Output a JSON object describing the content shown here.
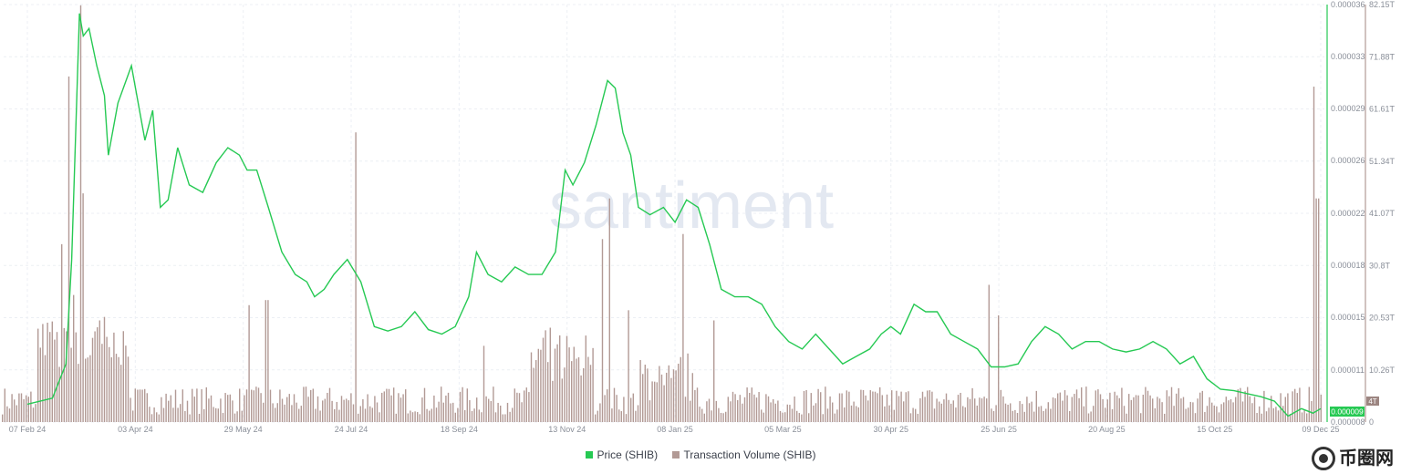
{
  "chart_data": {
    "type": "bar+line",
    "watermark": "santiment",
    "x_ticks": [
      "07 Feb 24",
      "03 Apr 24",
      "29 May 24",
      "24 Jul 24",
      "18 Sep 24",
      "13 Nov 24",
      "08 Jan 25",
      "05 Mar 25",
      "30 Apr 25",
      "25 Jun 25",
      "20 Aug 25",
      "15 Oct 25",
      "09 Dec 25"
    ],
    "price_axis": {
      "ticks": [
        "0.000036",
        "0.000033",
        "0.000029",
        "0.000026",
        "0.000022",
        "0.000018",
        "0.000015",
        "0.000011",
        "0.000009",
        "0.000008"
      ],
      "ylim": [
        8.1e-06,
        3.61e-05
      ]
    },
    "volume_axis": {
      "ticks": [
        "82.15T",
        "71.88T",
        "61.61T",
        "51.34T",
        "41.07T",
        "30.8T",
        "20.53T",
        "10.26T",
        "0"
      ],
      "ylim": [
        0,
        82.15
      ]
    },
    "current_price_label": "0.000009",
    "current_volume_label": "4T",
    "series": [
      {
        "name": "Price (SHIB)",
        "color": "#26c953",
        "points": [
          [
            "07 Feb 24",
            9.3e-06
          ],
          [
            "20 Feb 24",
            9.7e-06
          ],
          [
            "27 Feb 24",
            1.2e-05
          ],
          [
            "01 Mar 24",
            1.9e-05
          ],
          [
            "05 Mar 24",
            3.55e-05
          ],
          [
            "07 Mar 24",
            3.4e-05
          ],
          [
            "10 Mar 24",
            3.45e-05
          ],
          [
            "14 Mar 24",
            3.2e-05
          ],
          [
            "18 Mar 24",
            3e-05
          ],
          [
            "20 Mar 24",
            2.6e-05
          ],
          [
            "25 Mar 24",
            2.95e-05
          ],
          [
            "01 Apr 24",
            3.2e-05
          ],
          [
            "08 Apr 24",
            2.7e-05
          ],
          [
            "12 Apr 24",
            2.9e-05
          ],
          [
            "16 Apr 24",
            2.25e-05
          ],
          [
            "20 Apr 24",
            2.3e-05
          ],
          [
            "25 Apr 24",
            2.65e-05
          ],
          [
            "01 May 24",
            2.4e-05
          ],
          [
            "08 May 24",
            2.35e-05
          ],
          [
            "15 May 24",
            2.55e-05
          ],
          [
            "21 May 24",
            2.65e-05
          ],
          [
            "27 May 24",
            2.6e-05
          ],
          [
            "31 May 24",
            2.5e-05
          ],
          [
            "05 Jun 24",
            2.5e-05
          ],
          [
            "11 Jun 24",
            2.25e-05
          ],
          [
            "18 Jun 24",
            1.95e-05
          ],
          [
            "25 Jun 24",
            1.8e-05
          ],
          [
            "01 Jul 24",
            1.75e-05
          ],
          [
            "05 Jul 24",
            1.65e-05
          ],
          [
            "10 Jul 24",
            1.7e-05
          ],
          [
            "15 Jul 24",
            1.8e-05
          ],
          [
            "22 Jul 24",
            1.9e-05
          ],
          [
            "29 Jul 24",
            1.75e-05
          ],
          [
            "05 Aug 24",
            1.45e-05
          ],
          [
            "12 Aug 24",
            1.42e-05
          ],
          [
            "19 Aug 24",
            1.45e-05
          ],
          [
            "26 Aug 24",
            1.55e-05
          ],
          [
            "02 Sep 24",
            1.43e-05
          ],
          [
            "09 Sep 24",
            1.4e-05
          ],
          [
            "16 Sep 24",
            1.45e-05
          ],
          [
            "23 Sep 24",
            1.65e-05
          ],
          [
            "27 Sep 24",
            1.95e-05
          ],
          [
            "03 Oct 24",
            1.8e-05
          ],
          [
            "10 Oct 24",
            1.75e-05
          ],
          [
            "17 Oct 24",
            1.85e-05
          ],
          [
            "24 Oct 24",
            1.8e-05
          ],
          [
            "31 Oct 24",
            1.8e-05
          ],
          [
            "07 Nov 24",
            1.95e-05
          ],
          [
            "12 Nov 24",
            2.5e-05
          ],
          [
            "16 Nov 24",
            2.4e-05
          ],
          [
            "22 Nov 24",
            2.55e-05
          ],
          [
            "28 Nov 24",
            2.8e-05
          ],
          [
            "04 Dec 24",
            3.1e-05
          ],
          [
            "08 Dec 24",
            3.05e-05
          ],
          [
            "12 Dec 24",
            2.75e-05
          ],
          [
            "16 Dec 24",
            2.6e-05
          ],
          [
            "20 Dec 24",
            2.25e-05
          ],
          [
            "26 Dec 24",
            2.2e-05
          ],
          [
            "02 Jan 25",
            2.25e-05
          ],
          [
            "08 Jan 25",
            2.15e-05
          ],
          [
            "14 Jan 25",
            2.3e-05
          ],
          [
            "20 Jan 25",
            2.25e-05
          ],
          [
            "26 Jan 25",
            2e-05
          ],
          [
            "01 Feb 25",
            1.7e-05
          ],
          [
            "08 Feb 25",
            1.65e-05
          ],
          [
            "15 Feb 25",
            1.65e-05
          ],
          [
            "22 Feb 25",
            1.6e-05
          ],
          [
            "01 Mar 25",
            1.45e-05
          ],
          [
            "08 Mar 25",
            1.35e-05
          ],
          [
            "15 Mar 25",
            1.3e-05
          ],
          [
            "22 Mar 25",
            1.4e-05
          ],
          [
            "29 Mar 25",
            1.3e-05
          ],
          [
            "05 Apr 25",
            1.2e-05
          ],
          [
            "12 Apr 25",
            1.25e-05
          ],
          [
            "19 Apr 25",
            1.3e-05
          ],
          [
            "25 Apr 25",
            1.4e-05
          ],
          [
            "30 Apr 25",
            1.45e-05
          ],
          [
            "05 May 25",
            1.4e-05
          ],
          [
            "12 May 25",
            1.6e-05
          ],
          [
            "18 May 25",
            1.55e-05
          ],
          [
            "24 May 25",
            1.55e-05
          ],
          [
            "31 May 25",
            1.4e-05
          ],
          [
            "07 Jun 25",
            1.35e-05
          ],
          [
            "14 Jun 25",
            1.3e-05
          ],
          [
            "21 Jun 25",
            1.18e-05
          ],
          [
            "28 Jun 25",
            1.18e-05
          ],
          [
            "05 Jul 25",
            1.2e-05
          ],
          [
            "12 Jul 25",
            1.35e-05
          ],
          [
            "19 Jul 25",
            1.45e-05
          ],
          [
            "26 Jul 25",
            1.4e-05
          ],
          [
            "02 Aug 25",
            1.3e-05
          ],
          [
            "09 Aug 25",
            1.35e-05
          ],
          [
            "16 Aug 25",
            1.35e-05
          ],
          [
            "23 Aug 25",
            1.3e-05
          ],
          [
            "30 Aug 25",
            1.28e-05
          ],
          [
            "06 Sep 25",
            1.3e-05
          ],
          [
            "13 Sep 25",
            1.35e-05
          ],
          [
            "20 Sep 25",
            1.3e-05
          ],
          [
            "27 Sep 25",
            1.2e-05
          ],
          [
            "04 Oct 25",
            1.25e-05
          ],
          [
            "11 Oct 25",
            1.1e-05
          ],
          [
            "18 Oct 25",
            1.03e-05
          ],
          [
            "25 Oct 25",
            1.02e-05
          ],
          [
            "01 Nov 25",
            1e-05
          ],
          [
            "08 Nov 25",
            9.8e-06
          ],
          [
            "15 Nov 25",
            9.5e-06
          ],
          [
            "22 Nov 25",
            8.5e-06
          ],
          [
            "29 Nov 25",
            9e-06
          ],
          [
            "05 Dec 25",
            8.7e-06
          ],
          [
            "09 Dec 25",
            9e-06
          ]
        ]
      },
      {
        "name": "Transaction Volume (SHIB)",
        "color": "#b29a95",
        "spikes": [
          [
            "25 Feb 24",
            35
          ],
          [
            "28 Feb 24",
            68
          ],
          [
            "02 Mar 24",
            25
          ],
          [
            "05 Mar 24",
            82
          ],
          [
            "07 Mar 24",
            45
          ],
          [
            "15 Mar 24",
            20
          ],
          [
            "01 Jun 24",
            23
          ],
          [
            "10 Jun 24",
            24
          ],
          [
            "26 Jul 24",
            57
          ],
          [
            "01 Oct 24",
            15
          ],
          [
            "01 Dec 24",
            36
          ],
          [
            "05 Dec 24",
            44
          ],
          [
            "15 Dec 24",
            22
          ],
          [
            "12 Jan 25",
            37
          ],
          [
            "28 Jan 25",
            20
          ],
          [
            "20 Jun 25",
            27
          ],
          [
            "25 Jun 25",
            21
          ],
          [
            "05 Dec 25",
            66
          ],
          [
            "07 Dec 25",
            44
          ]
        ]
      }
    ]
  }
}
